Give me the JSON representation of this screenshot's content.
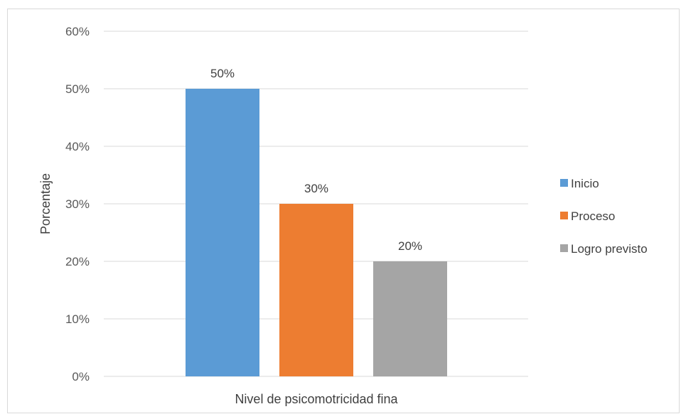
{
  "chart_data": {
    "type": "bar",
    "title": "",
    "xlabel": "Nivel de psicomotricidad fina",
    "ylabel": "Porcentaje",
    "categories": [
      "Nivel de psicomotricidad fina"
    ],
    "series": [
      {
        "name": "Inicio",
        "values": [
          50
        ],
        "color": "#5b9bd5",
        "label": "50%"
      },
      {
        "name": "Proceso",
        "values": [
          30
        ],
        "color": "#ed7d31",
        "label": "30%"
      },
      {
        "name": "Logro previsto",
        "values": [
          20
        ],
        "color": "#a5a5a5",
        "label": "20%"
      }
    ],
    "ylim": [
      0,
      60
    ],
    "yticks": [
      0,
      10,
      20,
      30,
      40,
      50,
      60
    ],
    "ytick_labels": [
      "0%",
      "10%",
      "20%",
      "30%",
      "40%",
      "50%",
      "60%"
    ],
    "grid": true,
    "legend_position": "right"
  },
  "colors": {
    "grid": "#d9d9d9",
    "text": "#595959"
  }
}
